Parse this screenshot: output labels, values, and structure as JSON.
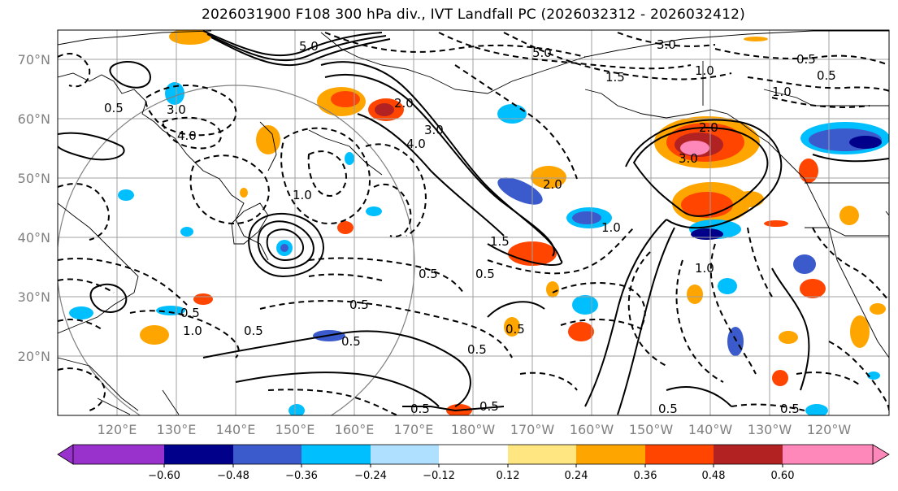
{
  "title": "2026031900 F108 300 hPa div., IVT Landfall PC (2026032312 - 2026032412)",
  "lat_labels": [
    "70°N",
    "60°N",
    "50°N",
    "40°N",
    "30°N",
    "20°N"
  ],
  "lat_values": [
    70,
    60,
    50,
    40,
    30,
    20
  ],
  "lon_labels": [
    "120°E",
    "130°E",
    "140°E",
    "150°E",
    "160°E",
    "170°E",
    "180°W",
    "170°W",
    "160°W",
    "150°W",
    "140°W",
    "130°W",
    "120°W"
  ],
  "contour_labels": [
    "5.0",
    "5.0",
    "3.0",
    "1.0",
    "1.5",
    "0.5",
    "0.5",
    "1.0",
    "2.0",
    "3.0",
    "4.0",
    "4.0",
    "3.0",
    "0.5",
    "1.5",
    "1.0",
    "0.5",
    "0.5",
    "0.5",
    "0.5",
    "0.5",
    "0.5",
    "0.5",
    "0.5",
    "1.0",
    "1.0",
    "2.0",
    "0.5",
    "0.5",
    "0.5",
    "0.5",
    "1.0",
    "3.0",
    "2.0"
  ],
  "colorbar": {
    "ticks": [
      "−0.60",
      "−0.48",
      "−0.36",
      "−0.24",
      "−0.12",
      "0.12",
      "0.24",
      "0.36",
      "0.48",
      "0.60"
    ],
    "colors": [
      "#9932cc",
      "#00008b",
      "#3b5bcc",
      "#00bfff",
      "#b0e0ff",
      "#ffffff",
      "#ffe680",
      "#ffa500",
      "#ff4500",
      "#b22222",
      "#ff88bb",
      "#ff88bb"
    ],
    "end_low": "#9932cc",
    "end_high": "#ff88bb"
  },
  "colors": {
    "grid": "#a0a0a0",
    "coast": "#000000",
    "label": "#808080"
  }
}
